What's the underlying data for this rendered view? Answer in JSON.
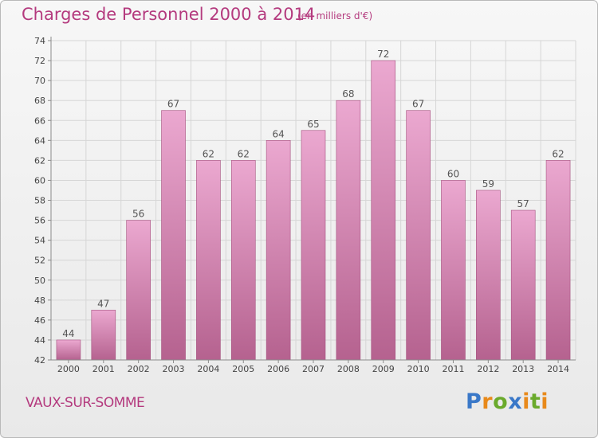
{
  "title": "Charges de Personnel 2000 à 2014",
  "subtitle": "(en milliers d'€)",
  "commune": "VAUX-SUR-SOMME",
  "logo": {
    "text": "Proxiti",
    "letters": [
      {
        "ch": "P",
        "color": "#3a78c8"
      },
      {
        "ch": "r",
        "color": "#e8891a"
      },
      {
        "ch": "o",
        "color": "#6aaa2c"
      },
      {
        "ch": "x",
        "color": "#3a78c8"
      },
      {
        "ch": "i",
        "color": "#e8891a"
      },
      {
        "ch": "t",
        "color": "#6aaa2c"
      },
      {
        "ch": "i",
        "color": "#e8891a"
      }
    ]
  },
  "colors": {
    "accent": "#b43a7e",
    "bar_light": "#eba8d0",
    "bar_dark": "#b5628f",
    "axis": "#8c8c8c",
    "grid": "#d6d6d6"
  },
  "chart_data": {
    "type": "bar",
    "categories": [
      "2000",
      "2001",
      "2002",
      "2003",
      "2004",
      "2005",
      "2006",
      "2007",
      "2008",
      "2009",
      "2010",
      "2011",
      "2012",
      "2013",
      "2014"
    ],
    "values": [
      44,
      47,
      56,
      67,
      62,
      62,
      64,
      65,
      68,
      72,
      67,
      60,
      59,
      57,
      62
    ],
    "title": "Charges de Personnel 2000 à 2014",
    "subtitle": "(en milliers d'€)",
    "xlabel": "",
    "ylabel": "",
    "ylim": [
      42,
      74
    ],
    "yticks": [
      42,
      44,
      46,
      48,
      50,
      52,
      54,
      56,
      58,
      60,
      62,
      64,
      66,
      68,
      70,
      72,
      74
    ],
    "grid": true,
    "data_labels": true
  }
}
